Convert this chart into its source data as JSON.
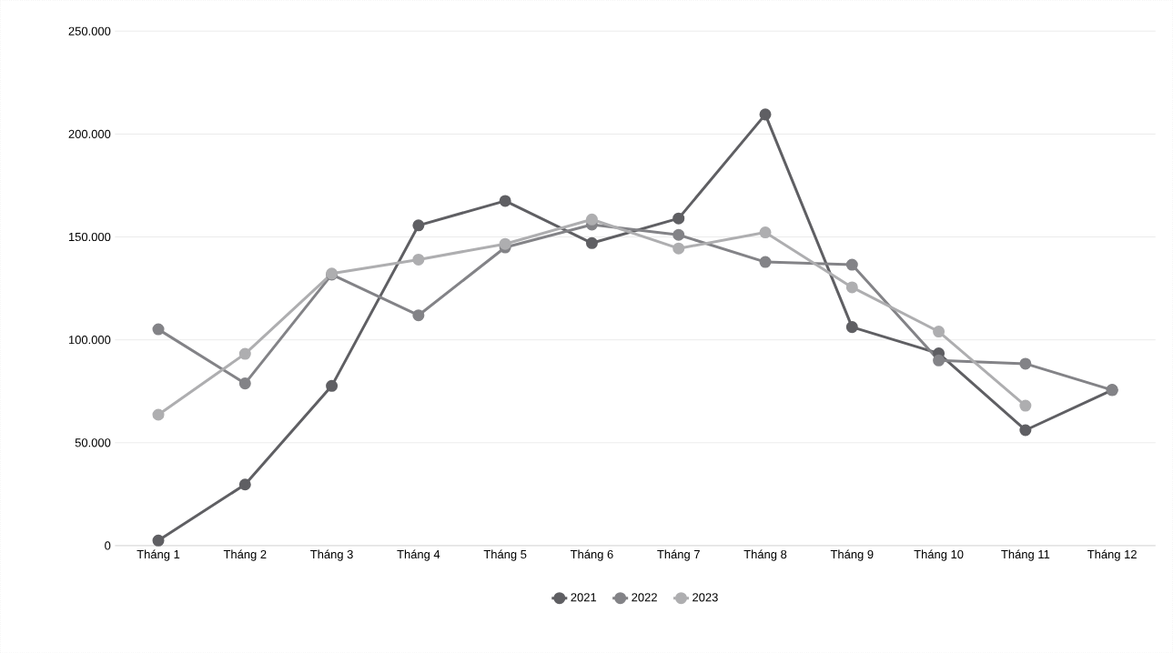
{
  "chart_data": {
    "type": "line",
    "categories": [
      "Tháng 1",
      "Tháng 2",
      "Tháng 3",
      "Tháng 4",
      "Tháng 5",
      "Tháng 6",
      "Tháng 7",
      "Tháng 8",
      "Tháng 9",
      "Tháng 10",
      "Tháng 11",
      "Tháng 12"
    ],
    "series": [
      {
        "name": "2021",
        "color": "#5f5f63",
        "values": [
          2500,
          29700,
          77600,
          155600,
          167500,
          147000,
          159000,
          209500,
          106200,
          93400,
          56100,
          75600
        ]
      },
      {
        "name": "2022",
        "color": "#838387",
        "values": [
          105100,
          78800,
          131700,
          111900,
          144900,
          156000,
          151000,
          137800,
          136500,
          90000,
          88400,
          75600
        ]
      },
      {
        "name": "2023",
        "color": "#aeaeb0",
        "values": [
          63600,
          93200,
          132200,
          139000,
          146600,
          158500,
          144400,
          152200,
          125500,
          104000,
          68000,
          null
        ]
      }
    ],
    "ylim": [
      0,
      250000
    ],
    "yticks": [
      0,
      {
        "value": 50000,
        "label": "50.000"
      },
      {
        "value": 100000,
        "label": "100.000"
      },
      {
        "value": 150000,
        "label": "150.000"
      },
      {
        "value": 200000,
        "label": "200.000"
      },
      {
        "value": 250000,
        "label": "250.000"
      }
    ],
    "grid": "y",
    "legend": "bottom",
    "marker": "circle",
    "line_style": "solid"
  }
}
